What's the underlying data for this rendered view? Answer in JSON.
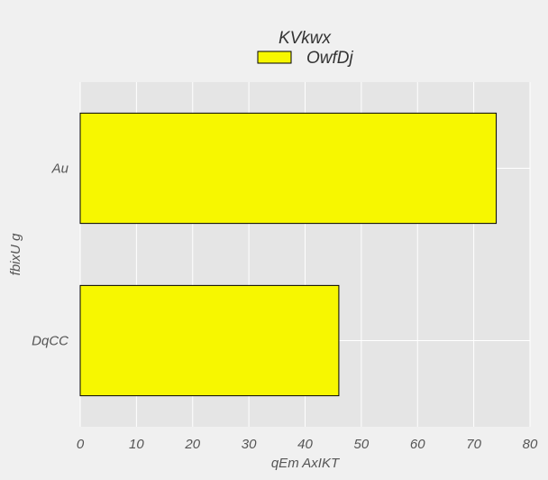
{
  "chart_data": {
    "type": "bar",
    "orientation": "horizontal",
    "title": "",
    "categories": [
      "Au",
      "DqCC"
    ],
    "series": [
      {
        "name": "OwfDj",
        "values": [
          74,
          46
        ],
        "color": "#f7f700"
      }
    ],
    "xlabel": "qEm AxIKT",
    "ylabel": "fbixU g",
    "xlim": [
      0,
      80
    ],
    "x_ticks": [
      "0",
      "10",
      "20",
      "30",
      "40",
      "50",
      "60",
      "70",
      "80"
    ],
    "grid": true,
    "legend": {
      "title": "KVkwx",
      "placement": "top-center"
    },
    "colors": {
      "background": "#f0f0f0",
      "plot_area": "#e5e5e5",
      "grid": "#ffffff",
      "bar_edge": "#000000"
    }
  }
}
